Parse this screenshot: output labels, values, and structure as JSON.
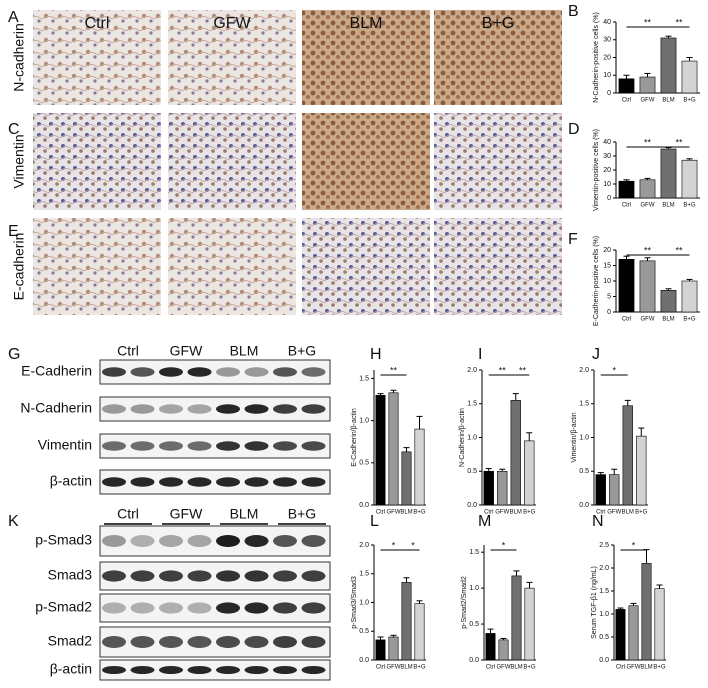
{
  "panels": [
    "A",
    "B",
    "C",
    "D",
    "E",
    "F",
    "G",
    "H",
    "I",
    "J",
    "K",
    "L",
    "M",
    "N"
  ],
  "ihc": {
    "columns": [
      "Ctrl",
      "GFW",
      "BLM",
      "B+G"
    ],
    "rows": [
      "N-cadherin",
      "Vimentin",
      "E-cadherin"
    ]
  },
  "blot1": {
    "groups": [
      "Ctrl",
      "GFW",
      "BLM",
      "B+G"
    ],
    "rows": [
      "E-Cadherin",
      "N-Cadherin",
      "Vimentin",
      "β-actin"
    ]
  },
  "blot2": {
    "groups": [
      "Ctrl",
      "GFW",
      "BLM",
      "B+G"
    ],
    "rows": [
      "p-Smad3",
      "Smad3",
      "p-Smad2",
      "Smad2",
      "β-actin"
    ]
  },
  "chart_data": [
    {
      "type": "bar",
      "ylabel": "N-Cadherin-positive cells (%)",
      "categories": [
        "Ctrl",
        "GFW",
        "BLM",
        "B+G"
      ],
      "values": [
        8,
        9,
        31,
        18
      ],
      "errors": [
        2,
        2,
        1,
        2
      ],
      "colors": [
        "#000000",
        "#999999",
        "#707070",
        "#d3d3d3"
      ],
      "ylim": [
        0,
        40
      ],
      "yticks": [
        0,
        10,
        20,
        30,
        40
      ],
      "annotations": [
        {
          "label": "**",
          "between": [
            "Ctrl",
            "BLM"
          ]
        },
        {
          "label": "**",
          "between": [
            "BLM",
            "B+G"
          ]
        }
      ]
    },
    {
      "type": "bar",
      "ylabel": "Vimentin-positive cells (%)",
      "categories": [
        "Ctrl",
        "GFW",
        "BLM",
        "B+G"
      ],
      "values": [
        12,
        13,
        35,
        27
      ],
      "errors": [
        1,
        1,
        1,
        1
      ],
      "colors": [
        "#000000",
        "#999999",
        "#707070",
        "#d3d3d3"
      ],
      "ylim": [
        0,
        40
      ],
      "yticks": [
        0,
        10,
        20,
        30,
        40
      ],
      "annotations": [
        {
          "label": "**",
          "between": [
            "Ctrl",
            "BLM"
          ]
        },
        {
          "label": "**",
          "between": [
            "BLM",
            "B+G"
          ]
        }
      ]
    },
    {
      "type": "bar",
      "ylabel": "E-Cadherin-positive cells (%)",
      "categories": [
        "Ctrl",
        "GFW",
        "BLM",
        "B+G"
      ],
      "values": [
        17,
        16.5,
        7,
        10
      ],
      "errors": [
        1,
        1,
        0.5,
        0.5
      ],
      "colors": [
        "#000000",
        "#999999",
        "#707070",
        "#d3d3d3"
      ],
      "ylim": [
        0,
        20
      ],
      "yticks": [
        0,
        5,
        10,
        15,
        20
      ],
      "annotations": [
        {
          "label": "**",
          "between": [
            "Ctrl",
            "BLM"
          ]
        },
        {
          "label": "**",
          "between": [
            "BLM",
            "B+G"
          ]
        }
      ]
    },
    {
      "type": "bar",
      "ylabel": "E-Cadherin/β-actin",
      "categories": [
        "Ctrl",
        "GFW",
        "BLM",
        "B+G"
      ],
      "values": [
        1.3,
        1.33,
        0.63,
        0.9
      ],
      "errors": [
        0.02,
        0.03,
        0.05,
        0.15
      ],
      "colors": [
        "#000000",
        "#999999",
        "#707070",
        "#d3d3d3"
      ],
      "ylim": [
        0,
        1.6
      ],
      "yticks": [
        {
          "value": 0,
          "label": "0.0"
        },
        0.5,
        {
          "value": 1,
          "label": "1.0"
        },
        1.5
      ],
      "annotations": [
        {
          "label": "**",
          "between": [
            "Ctrl",
            "BLM"
          ]
        }
      ]
    },
    {
      "type": "bar",
      "ylabel": "N-Cadherin/β-actin",
      "categories": [
        "Ctrl",
        "GFW",
        "BLM",
        "B+G"
      ],
      "values": [
        0.5,
        0.5,
        1.55,
        0.95
      ],
      "errors": [
        0.04,
        0.03,
        0.1,
        0.12
      ],
      "colors": [
        "#000000",
        "#999999",
        "#707070",
        "#d3d3d3"
      ],
      "ylim": [
        0,
        2
      ],
      "yticks": [
        {
          "value": 0,
          "label": "0.0"
        },
        0.5,
        {
          "value": 1,
          "label": "1.0"
        },
        1.5,
        {
          "value": 2,
          "label": "2.0"
        }
      ],
      "annotations": [
        {
          "label": "**",
          "between": [
            "Ctrl",
            "BLM"
          ]
        },
        {
          "label": "**",
          "between": [
            "BLM",
            "B+G"
          ]
        }
      ]
    },
    {
      "type": "bar",
      "ylabel": "Vimentin/β-actin",
      "categories": [
        "Ctrl",
        "GFW",
        "BLM",
        "B+G"
      ],
      "values": [
        0.45,
        0.45,
        1.47,
        1.02
      ],
      "errors": [
        0.03,
        0.08,
        0.08,
        0.12
      ],
      "colors": [
        "#000000",
        "#999999",
        "#707070",
        "#d3d3d3"
      ],
      "ylim": [
        0,
        2
      ],
      "yticks": [
        {
          "value": 0,
          "label": "0.0"
        },
        0.5,
        {
          "value": 1,
          "label": "1.0"
        },
        1.5,
        {
          "value": 2,
          "label": "2.0"
        }
      ],
      "annotations": [
        {
          "label": "*",
          "between": [
            "Ctrl",
            "BLM"
          ]
        }
      ]
    },
    {
      "type": "bar",
      "ylabel": "p-Smad3/Smad3",
      "categories": [
        "Ctrl",
        "GFW",
        "BLM",
        "B+G"
      ],
      "values": [
        0.35,
        0.4,
        1.35,
        0.98
      ],
      "errors": [
        0.05,
        0.03,
        0.08,
        0.05
      ],
      "colors": [
        "#000000",
        "#999999",
        "#707070",
        "#d3d3d3"
      ],
      "ylim": [
        0,
        2
      ],
      "yticks": [
        {
          "value": 0,
          "label": "0.0"
        },
        0.5,
        {
          "value": 1,
          "label": "1.0"
        },
        1.5,
        {
          "value": 2,
          "label": "2.0"
        }
      ],
      "annotations": [
        {
          "label": "*",
          "between": [
            "Ctrl",
            "BLM"
          ]
        },
        {
          "label": "*",
          "between": [
            "BLM",
            "B+G"
          ]
        }
      ]
    },
    {
      "type": "bar",
      "ylabel": "p-Smad2/Smad2",
      "categories": [
        "Ctrl",
        "GFW",
        "BLM",
        "B+G"
      ],
      "values": [
        0.37,
        0.28,
        1.17,
        1.0
      ],
      "errors": [
        0.06,
        0.02,
        0.07,
        0.08
      ],
      "colors": [
        "#000000",
        "#999999",
        "#707070",
        "#d3d3d3"
      ],
      "ylim": [
        0,
        1.6
      ],
      "yticks": [
        {
          "value": 0,
          "label": "0.0"
        },
        0.5,
        {
          "value": 1,
          "label": "1.0"
        },
        1.5
      ],
      "annotations": [
        {
          "label": "*",
          "between": [
            "Ctrl",
            "BLM"
          ]
        }
      ]
    },
    {
      "type": "bar",
      "ylabel": "Serum TGF-β1 (ng/mL)",
      "categories": [
        "Ctrl",
        "GFW",
        "BLM",
        "B+G"
      ],
      "values": [
        1.1,
        1.18,
        2.1,
        1.55
      ],
      "errors": [
        0.03,
        0.05,
        0.3,
        0.08
      ],
      "colors": [
        "#000000",
        "#999999",
        "#707070",
        "#d3d3d3"
      ],
      "ylim": [
        0,
        2.5
      ],
      "yticks": [
        {
          "value": 0,
          "label": "0.0"
        },
        0.5,
        {
          "value": 1,
          "label": "1.0"
        },
        1.5,
        {
          "value": 2,
          "label": "2.0"
        },
        2.5
      ],
      "annotations": [
        {
          "label": "*",
          "between": [
            "Ctrl",
            "BLM"
          ]
        }
      ]
    }
  ]
}
